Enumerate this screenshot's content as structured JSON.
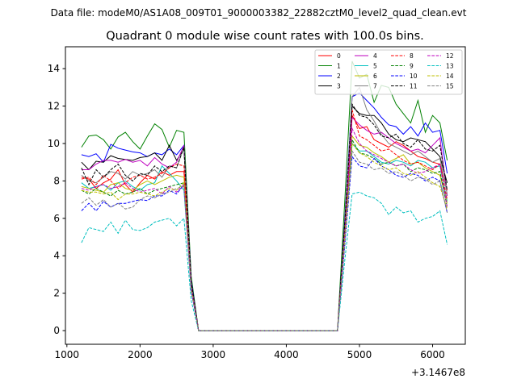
{
  "chart_data": {
    "type": "line",
    "suptitle": "Data file: modeM0/AS1A08_009T01_9000003382_22882cztM0_level2_quad_clean.evt",
    "title": "Quadrant 0 module wise count rates with 100.0s bins.",
    "xlabel": "",
    "ylabel": "",
    "x_offset_text": "+3.1467e8",
    "xlim": [
      980,
      6447
    ],
    "ylim": [
      -0.73,
      15.17
    ],
    "xticks": [
      1000,
      2000,
      3000,
      4000,
      5000,
      6000
    ],
    "yticks": [
      0,
      2,
      4,
      6,
      8,
      10,
      12,
      14
    ],
    "legend_placement": "top-right",
    "legend_columns": 4,
    "x_start": 1200,
    "x_step": 100,
    "series": [
      {
        "name": "0",
        "color": "#ff0000",
        "dash": false,
        "values": [
          8.2,
          8.1,
          7.6,
          7.9,
          8.1,
          8.6,
          7.8,
          7.4,
          7.9,
          8.3,
          8.1,
          8.5,
          8.3,
          8.5,
          8.5,
          2.5,
          0,
          0,
          0,
          0,
          0,
          0,
          0,
          0,
          0,
          0,
          0,
          0,
          0,
          0,
          0,
          0,
          0,
          0,
          0,
          0,
          5.5,
          11.5,
          10.8,
          10.9,
          10.2,
          10.0,
          9.8,
          10.1,
          9.9,
          9.6,
          9.3,
          9.2,
          9.0,
          8.9,
          7.5
        ]
      },
      {
        "name": "1",
        "color": "#008000",
        "dash": false,
        "values": [
          9.8,
          10.4,
          10.45,
          10.2,
          9.7,
          10.35,
          10.6,
          10.1,
          9.7,
          10.4,
          11.05,
          10.75,
          9.8,
          10.7,
          10.6,
          2.9,
          0,
          0,
          0,
          0,
          0,
          0,
          0,
          0,
          0,
          0,
          0,
          0,
          0,
          0,
          0,
          0,
          0,
          0,
          0,
          0,
          7.0,
          14.4,
          13.5,
          13.7,
          12.2,
          13.1,
          13.0,
          12.1,
          11.6,
          11.1,
          12.3,
          10.6,
          11.5,
          11.1,
          9.1
        ]
      },
      {
        "name": "2",
        "color": "#0000ff",
        "dash": false,
        "values": [
          9.4,
          9.3,
          9.45,
          9.0,
          9.95,
          9.75,
          9.65,
          9.55,
          9.5,
          9.3,
          9.5,
          9.4,
          9.7,
          9.4,
          9.9,
          2.7,
          0,
          0,
          0,
          0,
          0,
          0,
          0,
          0,
          0,
          0,
          0,
          0,
          0,
          0,
          0,
          0,
          0,
          0,
          0,
          0,
          6.0,
          12.5,
          12.7,
          12.3,
          11.9,
          11.4,
          11.0,
          10.9,
          10.5,
          10.9,
          10.4,
          11.1,
          10.6,
          10.7,
          8.4
        ]
      },
      {
        "name": "3",
        "color": "#000000",
        "dash": false,
        "values": [
          9.0,
          8.6,
          9.05,
          9.0,
          9.35,
          9.2,
          9.15,
          9.1,
          9.25,
          9.3,
          9.5,
          9.1,
          9.9,
          9.1,
          9.7,
          2.6,
          0,
          0,
          0,
          0,
          0,
          0,
          0,
          0,
          0,
          0,
          0,
          0,
          0,
          0,
          0,
          0,
          0,
          0,
          0,
          0,
          5.8,
          12.0,
          11.6,
          11.5,
          11.5,
          11.1,
          10.5,
          10.2,
          10.1,
          10.3,
          10.2,
          10.1,
          9.7,
          9.3,
          7.9
        ]
      },
      {
        "name": "4",
        "color": "#bf00bf",
        "dash": false,
        "values": [
          8.6,
          8.6,
          8.9,
          9.1,
          9.1,
          9.0,
          9.15,
          9.0,
          9.1,
          8.8,
          9.25,
          8.9,
          8.7,
          9.0,
          9.9,
          2.5,
          0,
          0,
          0,
          0,
          0,
          0,
          0,
          0,
          0,
          0,
          0,
          0,
          0,
          0,
          0,
          0,
          0,
          0,
          0,
          0,
          5.5,
          11.4,
          11.0,
          10.7,
          10.5,
          10.6,
          10.3,
          10.0,
          9.8,
          9.6,
          9.7,
          9.5,
          9.9,
          10.3,
          7.2
        ]
      },
      {
        "name": "5",
        "color": "#00bfbf",
        "dash": false,
        "values": [
          7.9,
          7.6,
          7.7,
          7.8,
          7.5,
          7.9,
          8.0,
          7.7,
          7.5,
          7.8,
          7.9,
          8.8,
          8.4,
          8.0,
          7.5,
          2.3,
          0,
          0,
          0,
          0,
          0,
          0,
          0,
          0,
          0,
          0,
          0,
          0,
          0,
          0,
          0,
          0,
          0,
          0,
          0,
          0,
          5.2,
          10.0,
          9.6,
          9.6,
          9.3,
          9.0,
          8.9,
          9.1,
          9.0,
          8.8,
          9.1,
          9.0,
          8.7,
          8.8,
          6.9
        ]
      },
      {
        "name": "6",
        "color": "#bfbf00",
        "dash": false,
        "values": [
          7.7,
          7.6,
          7.5,
          7.4,
          7.8,
          7.9,
          7.6,
          7.5,
          7.8,
          8.0,
          7.8,
          8.0,
          8.2,
          8.3,
          8.2,
          2.4,
          0,
          0,
          0,
          0,
          0,
          0,
          0,
          0,
          0,
          0,
          0,
          0,
          0,
          0,
          0,
          0,
          0,
          0,
          0,
          0,
          5.3,
          10.4,
          9.9,
          9.8,
          9.5,
          9.3,
          9.0,
          9.2,
          9.4,
          8.9,
          9.0,
          8.7,
          8.5,
          8.3,
          6.8
        ]
      },
      {
        "name": "7",
        "color": "#808080",
        "dash": false,
        "values": [
          8.3,
          8.0,
          7.9,
          8.2,
          8.5,
          8.4,
          8.1,
          8.5,
          8.3,
          8.4,
          8.6,
          8.2,
          8.8,
          8.7,
          9.8,
          2.5,
          0,
          0,
          0,
          0,
          0,
          0,
          0,
          0,
          0,
          0,
          0,
          0,
          0,
          0,
          0,
          0,
          0,
          0,
          0,
          0,
          5.6,
          12.5,
          13.0,
          11.8,
          11.2,
          10.5,
          10.0,
          9.8,
          9.6,
          9.4,
          9.6,
          9.3,
          9.0,
          9.2,
          7.3
        ]
      },
      {
        "name": "8",
        "color": "#ff0000",
        "dash": true,
        "values": [
          8.1,
          8.2,
          7.8,
          8.3,
          8.0,
          7.6,
          7.9,
          8.2,
          8.3,
          8.1,
          8.2,
          8.4,
          8.7,
          8.9,
          8.8,
          2.5,
          0,
          0,
          0,
          0,
          0,
          0,
          0,
          0,
          0,
          0,
          0,
          0,
          0,
          0,
          0,
          0,
          0,
          0,
          0,
          0,
          5.7,
          11.8,
          10.4,
          10.2,
          9.9,
          9.6,
          9.7,
          9.4,
          9.1,
          8.9,
          9.0,
          8.8,
          8.6,
          8.9,
          7.0
        ]
      },
      {
        "name": "9",
        "color": "#008000",
        "dash": true,
        "values": [
          7.5,
          7.3,
          7.6,
          7.4,
          7.2,
          7.5,
          7.3,
          7.4,
          7.6,
          7.3,
          7.5,
          7.6,
          7.7,
          7.8,
          7.9,
          2.2,
          0,
          0,
          0,
          0,
          0,
          0,
          0,
          0,
          0,
          0,
          0,
          0,
          0,
          0,
          0,
          0,
          0,
          0,
          0,
          0,
          5.0,
          10.2,
          9.5,
          9.4,
          9.2,
          8.9,
          9.0,
          8.8,
          8.9,
          8.5,
          8.7,
          8.6,
          8.4,
          8.5,
          6.6
        ]
      },
      {
        "name": "10",
        "color": "#0000ff",
        "dash": true,
        "values": [
          6.4,
          6.8,
          6.4,
          6.9,
          6.6,
          6.8,
          6.8,
          6.9,
          7.0,
          6.95,
          7.2,
          7.2,
          7.5,
          7.3,
          7.8,
          2.1,
          0,
          0,
          0,
          0,
          0,
          0,
          0,
          0,
          0,
          0,
          0,
          0,
          0,
          0,
          0,
          0,
          0,
          0,
          0,
          0,
          4.6,
          9.3,
          8.8,
          8.7,
          9.2,
          8.8,
          8.6,
          8.3,
          8.2,
          8.4,
          8.3,
          8.0,
          8.2,
          8.0,
          6.3
        ]
      },
      {
        "name": "11",
        "color": "#000000",
        "dash": true,
        "values": [
          8.7,
          7.8,
          8.6,
          8.2,
          8.6,
          8.9,
          8.3,
          8.0,
          8.4,
          8.3,
          8.8,
          8.5,
          8.8,
          8.7,
          9.8,
          2.6,
          0,
          0,
          0,
          0,
          0,
          0,
          0,
          0,
          0,
          0,
          0,
          0,
          0,
          0,
          0,
          0,
          0,
          0,
          0,
          0,
          5.8,
          12.1,
          11.5,
          11.4,
          11.0,
          10.4,
          10.3,
          10.5,
          10.0,
          9.8,
          10.2,
          9.7,
          9.6,
          9.9,
          7.5
        ]
      },
      {
        "name": "12",
        "color": "#bf00bf",
        "dash": true,
        "values": [
          7.6,
          7.5,
          7.7,
          7.8,
          7.6,
          7.7,
          7.9,
          7.6,
          7.4,
          7.5,
          7.6,
          7.3,
          7.7,
          7.4,
          7.8,
          2.3,
          0,
          0,
          0,
          0,
          0,
          0,
          0,
          0,
          0,
          0,
          0,
          0,
          0,
          0,
          0,
          0,
          0,
          0,
          0,
          0,
          5.2,
          10.8,
          10.0,
          9.6,
          9.4,
          9.2,
          9.0,
          8.8,
          8.9,
          8.6,
          8.4,
          8.5,
          8.7,
          8.9,
          6.6
        ]
      },
      {
        "name": "13",
        "color": "#00bfbf",
        "dash": true,
        "values": [
          4.7,
          5.5,
          5.4,
          5.3,
          5.8,
          5.2,
          5.9,
          5.4,
          5.35,
          5.5,
          5.8,
          5.9,
          6.0,
          5.6,
          6.0,
          1.6,
          0,
          0,
          0,
          0,
          0,
          0,
          0,
          0,
          0,
          0,
          0,
          0,
          0,
          0,
          0,
          0,
          0,
          0,
          0,
          0,
          3.8,
          7.3,
          7.4,
          7.2,
          7.1,
          6.8,
          6.2,
          6.6,
          6.3,
          6.4,
          5.8,
          6.0,
          6.1,
          6.4,
          4.6
        ]
      },
      {
        "name": "14",
        "color": "#bfbf00",
        "dash": true,
        "values": [
          7.5,
          7.4,
          7.4,
          7.3,
          7.4,
          7.0,
          7.3,
          7.3,
          7.4,
          7.3,
          7.2,
          7.4,
          7.6,
          7.5,
          7.9,
          2.2,
          0,
          0,
          0,
          0,
          0,
          0,
          0,
          0,
          0,
          0,
          0,
          0,
          0,
          0,
          0,
          0,
          0,
          0,
          0,
          0,
          5.0,
          10.0,
          9.5,
          9.3,
          9.0,
          8.8,
          8.6,
          8.7,
          8.4,
          8.3,
          8.5,
          8.2,
          7.9,
          7.7,
          6.5
        ]
      },
      {
        "name": "15",
        "color": "#808080",
        "dash": true,
        "values": [
          6.8,
          7.1,
          6.7,
          7.0,
          6.6,
          6.8,
          6.5,
          6.6,
          7.0,
          7.2,
          7.1,
          7.3,
          7.4,
          7.6,
          7.7,
          2.1,
          0,
          0,
          0,
          0,
          0,
          0,
          0,
          0,
          0,
          0,
          0,
          0,
          0,
          0,
          0,
          0,
          0,
          0,
          0,
          0,
          4.7,
          9.6,
          9.0,
          8.9,
          8.6,
          8.7,
          8.4,
          8.5,
          8.3,
          8.0,
          8.2,
          8.1,
          7.8,
          8.0,
          6.3
        ]
      }
    ]
  }
}
